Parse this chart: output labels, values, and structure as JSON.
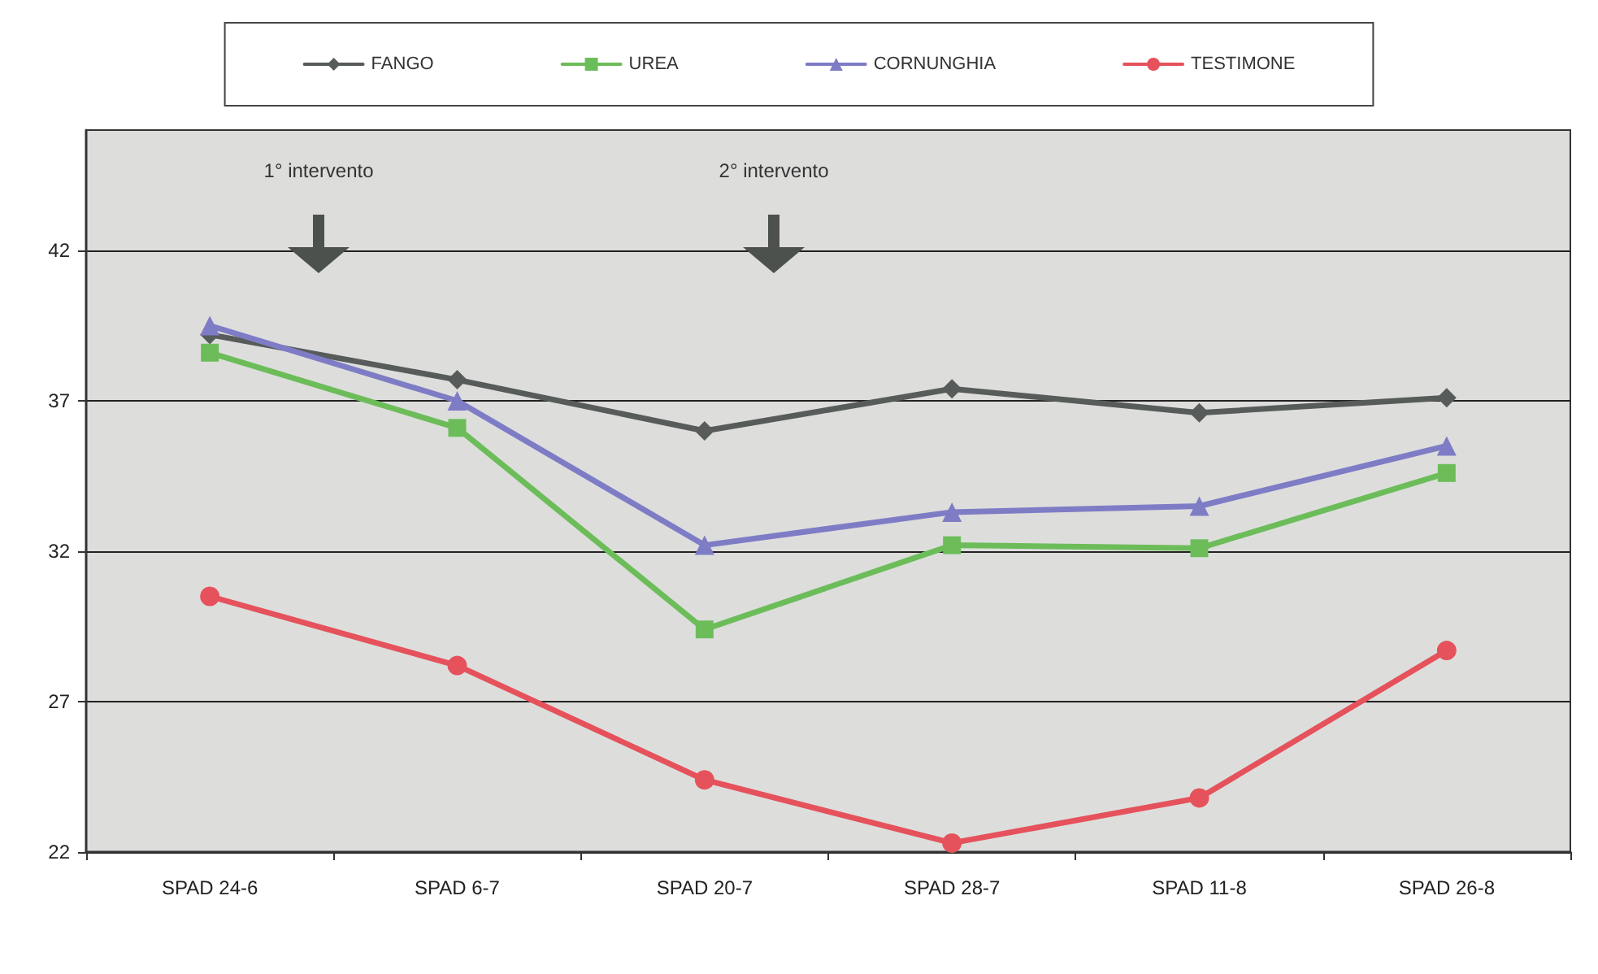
{
  "chart_data": {
    "type": "line",
    "categories": [
      "SPAD 24-6",
      "SPAD 6-7",
      "SPAD 20-7",
      "SPAD 28-7",
      "SPAD 11-8",
      "SPAD 26-8"
    ],
    "series": [
      {
        "name": "FANGO",
        "color": "#575c5a",
        "marker": "diamond",
        "values": [
          39.2,
          37.7,
          36.0,
          37.4,
          36.6,
          37.1
        ]
      },
      {
        "name": "UREA",
        "color": "#6cbd5a",
        "marker": "square",
        "values": [
          38.6,
          36.1,
          29.4,
          32.2,
          32.1,
          34.6
        ]
      },
      {
        "name": "CORNUNGHIA",
        "color": "#7f7cc6",
        "marker": "triangle",
        "values": [
          39.5,
          37.0,
          32.2,
          33.3,
          33.5,
          35.5
        ]
      },
      {
        "name": "TESTIMONE",
        "color": "#e5525c",
        "marker": "circle",
        "values": [
          30.5,
          28.2,
          24.4,
          22.3,
          23.8,
          28.7
        ]
      }
    ],
    "ylim": [
      22,
      46
    ],
    "yticks": [
      22,
      27,
      32,
      37,
      42
    ],
    "grid": "y",
    "legend": "top",
    "line_style": "solid",
    "annotations": [
      "1° intervento",
      "2° intervento"
    ]
  }
}
